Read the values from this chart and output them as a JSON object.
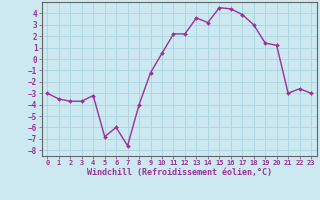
{
  "x": [
    0,
    1,
    2,
    3,
    4,
    5,
    6,
    7,
    8,
    9,
    10,
    11,
    12,
    13,
    14,
    15,
    16,
    17,
    18,
    19,
    20,
    21,
    22,
    23
  ],
  "y": [
    -3,
    -3.5,
    -3.7,
    -3.7,
    -3.2,
    -6.8,
    -6.0,
    -7.6,
    -4.0,
    -1.2,
    0.5,
    2.2,
    2.2,
    3.6,
    3.2,
    4.5,
    4.4,
    3.9,
    3.0,
    1.4,
    1.2,
    -3.0,
    -2.6,
    -3.0
  ],
  "xlim": [
    -0.5,
    23.5
  ],
  "ylim": [
    -8.5,
    5.0
  ],
  "yticks": [
    4,
    3,
    2,
    1,
    0,
    -1,
    -2,
    -3,
    -4,
    -5,
    -6,
    -7,
    -8
  ],
  "xticks": [
    0,
    1,
    2,
    3,
    4,
    5,
    6,
    7,
    8,
    9,
    10,
    11,
    12,
    13,
    14,
    15,
    16,
    17,
    18,
    19,
    20,
    21,
    22,
    23
  ],
  "xlabel": "Windchill (Refroidissement éolien,°C)",
  "line_color": "#993399",
  "marker_color": "#993399",
  "bg_color": "#cce8f0",
  "grid_color": "#aad4e0",
  "tick_label_color": "#993399",
  "xlabel_color": "#993399",
  "font_family": "monospace"
}
